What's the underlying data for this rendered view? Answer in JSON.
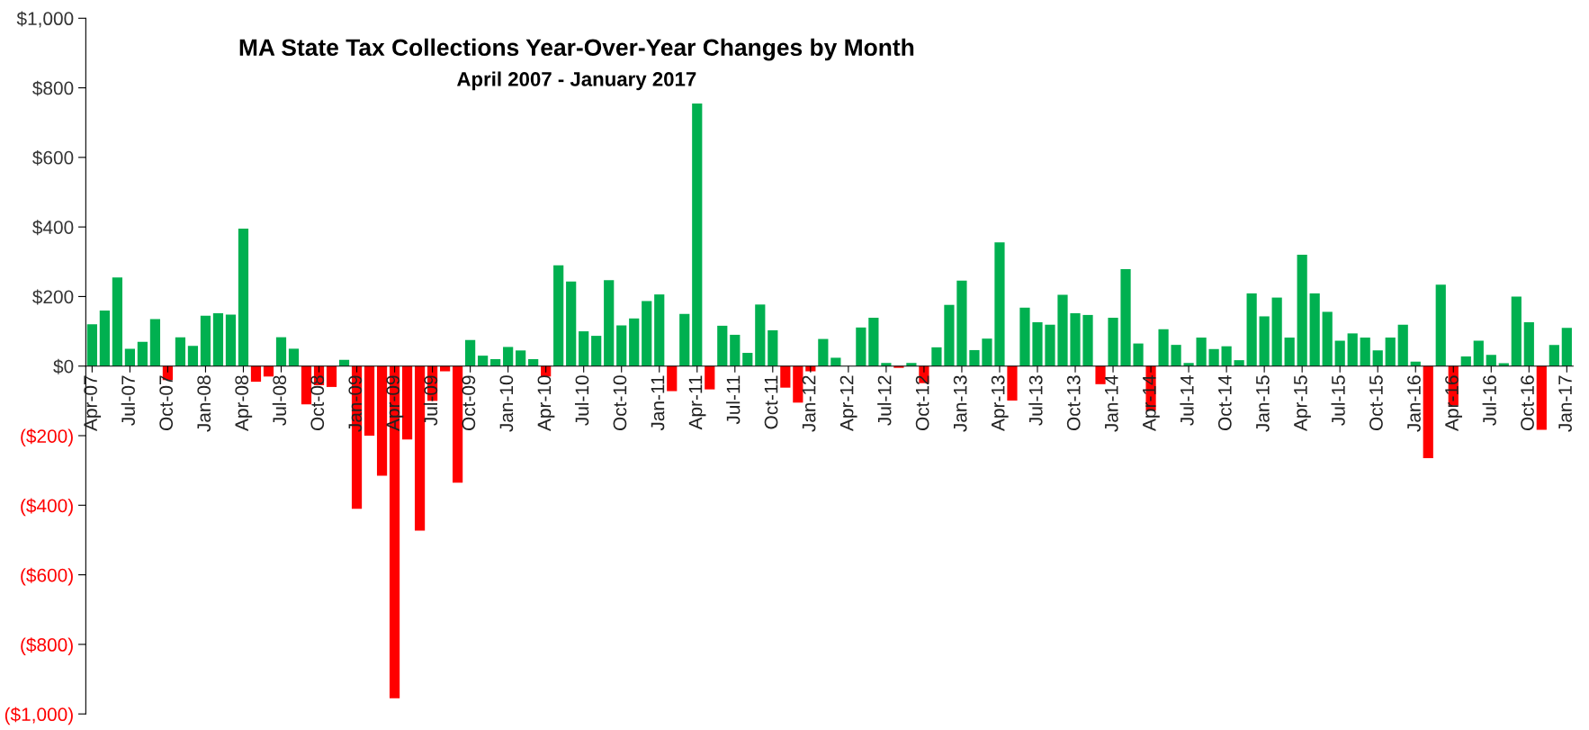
{
  "chart_data": {
    "type": "bar",
    "title": "MA State Tax Collections Year-Over-Year Changes by Month",
    "subtitle": "April 2007 - January 2017",
    "categories": [
      "Apr-07",
      null,
      null,
      "Jul-07",
      null,
      null,
      "Oct-07",
      null,
      null,
      "Jan-08",
      null,
      null,
      "Apr-08",
      null,
      null,
      "Jul-08",
      null,
      null,
      "Oct-08",
      null,
      null,
      "Jan-09",
      null,
      null,
      "Apr-09",
      null,
      null,
      "Jul-09",
      null,
      null,
      "Oct-09",
      null,
      null,
      "Jan-10",
      null,
      null,
      "Apr-10",
      null,
      null,
      "Jul-10",
      null,
      null,
      "Oct-10",
      null,
      null,
      "Jan-11",
      null,
      null,
      "Apr-11",
      null,
      null,
      "Jul-11",
      null,
      null,
      "Oct-11",
      null,
      null,
      "Jan-12",
      null,
      null,
      "Apr-12",
      null,
      null,
      "Jul-12",
      null,
      null,
      "Oct-12",
      null,
      null,
      "Jan-13",
      null,
      null,
      "Apr-13",
      null,
      null,
      "Jul-13",
      null,
      null,
      "Oct-13",
      null,
      null,
      "Jan-14",
      null,
      null,
      "Apr-14",
      null,
      null,
      "Jul-14",
      null,
      null,
      "Oct-14",
      null,
      null,
      "Jan-15",
      null,
      null,
      "Apr-15",
      null,
      null,
      "Jul-15",
      null,
      null,
      "Oct-15",
      null,
      null,
      "Jan-16",
      null,
      null,
      "Apr-16",
      null,
      null,
      "Jul-16",
      null,
      null,
      "Oct-16",
      null,
      null,
      "Jan-17"
    ],
    "values": [
      120,
      160,
      255,
      50,
      70,
      135,
      -40,
      83,
      58,
      145,
      152,
      148,
      395,
      -45,
      -30,
      83,
      50,
      -110,
      -55,
      -60,
      18,
      -410,
      -200,
      -315,
      -955,
      -211,
      -473,
      -100,
      -15,
      -335,
      75,
      30,
      20,
      55,
      45,
      20,
      -30,
      290,
      243,
      100,
      87,
      247,
      117,
      137,
      187,
      206,
      -72,
      150,
      755,
      -67,
      116,
      90,
      38,
      177,
      103,
      -62,
      -105,
      -15,
      78,
      24,
      0,
      111,
      139,
      9,
      -5,
      9,
      -49,
      54,
      176,
      246,
      46,
      79,
      356,
      -99,
      168,
      126,
      119,
      205,
      152,
      147,
      -52,
      139,
      279,
      65,
      -128,
      106,
      61,
      9,
      82,
      49,
      57,
      17,
      209,
      143,
      197,
      82,
      320,
      209,
      156,
      73,
      94,
      82,
      45,
      82,
      119,
      13,
      -265,
      234,
      -113,
      28,
      73,
      32,
      8,
      200,
      126,
      -183,
      61,
      110
    ],
    "colors": [
      "#00b050",
      "#00b050",
      "#00b050",
      "#00b050",
      "#00b050",
      "#00b050",
      "#ff0000",
      "#00b050",
      "#00b050",
      "#00b050",
      "#00b050",
      "#00b050",
      "#00b050",
      "#ff0000",
      "#ff0000",
      "#00b050",
      "#00b050",
      "#ff0000",
      "#ff0000",
      "#ff0000",
      "#00b050",
      "#ff0000",
      "#ff0000",
      "#ff0000",
      "#ff0000",
      "#ff0000",
      "#ff0000",
      "#ff0000",
      "#ff0000",
      "#ff0000",
      "#00b050",
      "#00b050",
      "#00b050",
      "#00b050",
      "#00b050",
      "#00b050",
      "#ff0000",
      "#00b050",
      "#00b050",
      "#00b050",
      "#00b050",
      "#00b050",
      "#00b050",
      "#00b050",
      "#00b050",
      "#00b050",
      "#ff0000",
      "#00b050",
      "#00b050",
      "#ff0000",
      "#00b050",
      "#00b050",
      "#00b050",
      "#00b050",
      "#00b050",
      "#ff0000",
      "#ff0000",
      "#ff0000",
      "#00b050",
      "#00b050",
      "#00b050",
      "#00b050",
      "#00b050",
      "#00b050",
      "#ff0000",
      "#00b050",
      "#ff0000",
      "#00b050",
      "#00b050",
      "#00b050",
      "#00b050",
      "#00b050",
      "#00b050",
      "#ff0000",
      "#00b050",
      "#00b050",
      "#00b050",
      "#00b050",
      "#00b050",
      "#00b050",
      "#ff0000",
      "#00b050",
      "#00b050",
      "#00b050",
      "#ff0000",
      "#00b050",
      "#00b050",
      "#00b050",
      "#00b050",
      "#00b050",
      "#00b050",
      "#00b050",
      "#00b050",
      "#00b050",
      "#00b050",
      "#00b050",
      "#00b050",
      "#00b050",
      "#00b050",
      "#00b050",
      "#00b050",
      "#00b050",
      "#00b050",
      "#00b050",
      "#00b050",
      "#00b050",
      "#ff0000",
      "#00b050",
      "#ff0000",
      "#00b050",
      "#00b050",
      "#00b050",
      "#00b050",
      "#00b050",
      "#00b050",
      "#ff0000",
      "#00b050",
      "#00b050"
    ],
    "ylim": [
      -1000,
      1000
    ],
    "yticks": [
      {
        "value": -1000,
        "label": "($1,000)"
      },
      {
        "value": -800,
        "label": "($800)"
      },
      {
        "value": -600,
        "label": "($600)"
      },
      {
        "value": -400,
        "label": "($400)"
      },
      {
        "value": -200,
        "label": "($200)"
      },
      {
        "value": 0,
        "label": "$0"
      },
      {
        "value": 200,
        "label": "$200"
      },
      {
        "value": 400,
        "label": "$400"
      },
      {
        "value": 600,
        "label": "$600"
      },
      {
        "value": 800,
        "label": "$800"
      },
      {
        "value": 1000,
        "label": "$1,000"
      }
    ],
    "grid": false,
    "legend": false
  }
}
